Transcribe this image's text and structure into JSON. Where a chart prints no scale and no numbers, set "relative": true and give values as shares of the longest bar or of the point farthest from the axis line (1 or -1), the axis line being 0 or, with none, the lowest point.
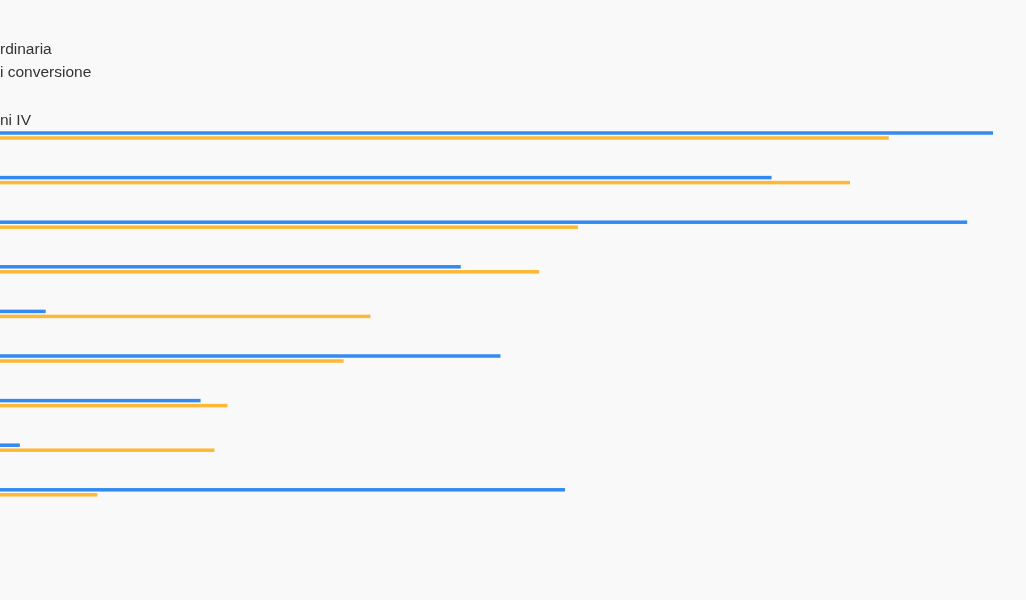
{
  "chart_data": {
    "type": "bar",
    "orientation": "horizontal",
    "relative": true,
    "categories": [
      null,
      null,
      null,
      null,
      null,
      null,
      null,
      null,
      null
    ],
    "series": [
      {
        "color": "#338af0",
        "values": [
          1,
          0.777,
          0.974,
          0.464,
          0.046,
          0.504,
          0.202,
          0.02,
          0.569
        ]
      },
      {
        "color": "#fdb935",
        "values": [
          0.895,
          0.856,
          0.582,
          0.543,
          0.373,
          0.346,
          0.229,
          0.216,
          0.098
        ]
      }
    ],
    "annotations": [
      "rdinaria",
      "i conversione",
      "ni IV"
    ]
  }
}
